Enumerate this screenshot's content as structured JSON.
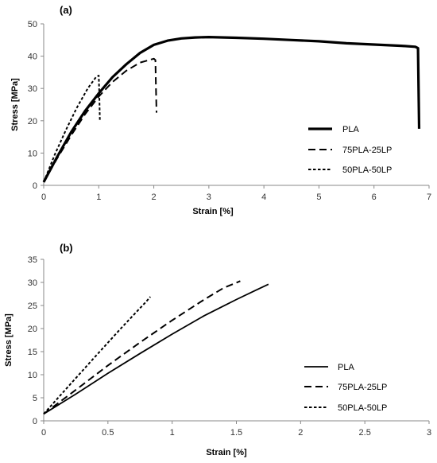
{
  "chart_data": [
    {
      "type": "line",
      "panel_label": "(a)",
      "xlabel": "Strain [%]",
      "ylabel": "Stress [MPa]",
      "xlim": [
        0,
        7
      ],
      "ylim": [
        0,
        50
      ],
      "xticks": [
        "0",
        "1",
        "2",
        "3",
        "4",
        "5",
        "6",
        "7"
      ],
      "yticks": [
        "0",
        "10",
        "20",
        "30",
        "40",
        "50"
      ],
      "grid": false,
      "legend_position": "right",
      "series": [
        {
          "name": "PLA",
          "style": "solid-thick",
          "points": [
            [
              0,
              1
            ],
            [
              0.25,
              9
            ],
            [
              0.5,
              16.5
            ],
            [
              0.75,
              23
            ],
            [
              1,
              28.5
            ],
            [
              1.25,
              33.5
            ],
            [
              1.5,
              37.5
            ],
            [
              1.75,
              41
            ],
            [
              2,
              43.5
            ],
            [
              2.25,
              44.8
            ],
            [
              2.5,
              45.5
            ],
            [
              2.75,
              45.8
            ],
            [
              3,
              45.9
            ],
            [
              3.5,
              45.7
            ],
            [
              4,
              45.4
            ],
            [
              4.5,
              45
            ],
            [
              5,
              44.6
            ],
            [
              5.5,
              44
            ],
            [
              6,
              43.6
            ],
            [
              6.5,
              43.2
            ],
            [
              6.75,
              42.9
            ],
            [
              6.8,
              42.5
            ],
            [
              6.81,
              30
            ],
            [
              6.82,
              17.5
            ]
          ]
        },
        {
          "name": "75PLA-25LP",
          "style": "long-dash",
          "points": [
            [
              0,
              1
            ],
            [
              0.25,
              8.5
            ],
            [
              0.5,
              15.5
            ],
            [
              0.75,
              22
            ],
            [
              1,
              27.5
            ],
            [
              1.25,
              32
            ],
            [
              1.5,
              35.5
            ],
            [
              1.75,
              38
            ],
            [
              2,
              39.2
            ],
            [
              2.03,
              38.8
            ],
            [
              2.04,
              30
            ],
            [
              2.05,
              22.5
            ]
          ]
        },
        {
          "name": "50PLA-50LP",
          "style": "short-dash",
          "points": [
            [
              0,
              1
            ],
            [
              0.2,
              9.5
            ],
            [
              0.4,
              17
            ],
            [
              0.6,
              24
            ],
            [
              0.8,
              30
            ],
            [
              0.95,
              33.5
            ],
            [
              1.0,
              34
            ],
            [
              1.01,
              28
            ],
            [
              1.02,
              20
            ]
          ]
        }
      ]
    },
    {
      "type": "line",
      "panel_label": "(b)",
      "xlabel": "Strain [%]",
      "ylabel": "Stress [MPa]",
      "xlim": [
        0,
        3
      ],
      "ylim": [
        0,
        35
      ],
      "xticks": [
        "0",
        "0.5",
        "1",
        "1.5",
        "2",
        "2.5",
        "3"
      ],
      "yticks": [
        "0",
        "5",
        "10",
        "15",
        "20",
        "25",
        "30",
        "35"
      ],
      "grid": false,
      "legend_position": "right",
      "series": [
        {
          "name": "PLA",
          "style": "solid",
          "points": [
            [
              0,
              1.5
            ],
            [
              0.25,
              5.8
            ],
            [
              0.5,
              10.3
            ],
            [
              0.75,
              14.6
            ],
            [
              1,
              18.8
            ],
            [
              1.25,
              22.8
            ],
            [
              1.5,
              26.3
            ],
            [
              1.65,
              28.3
            ],
            [
              1.75,
              29.6
            ]
          ]
        },
        {
          "name": "75PLA-25LP",
          "style": "long-dash",
          "points": [
            [
              0,
              1.5
            ],
            [
              0.25,
              6.7
            ],
            [
              0.5,
              12
            ],
            [
              0.75,
              17
            ],
            [
              1,
              21.8
            ],
            [
              1.25,
              26.3
            ],
            [
              1.4,
              28.8
            ],
            [
              1.53,
              30.3
            ]
          ]
        },
        {
          "name": "50PLA-50LP",
          "style": "short-dash",
          "points": [
            [
              0,
              1.5
            ],
            [
              0.2,
              7.7
            ],
            [
              0.4,
              13.9
            ],
            [
              0.6,
              20
            ],
            [
              0.8,
              25.9
            ],
            [
              0.83,
              26.9
            ]
          ]
        }
      ]
    }
  ]
}
